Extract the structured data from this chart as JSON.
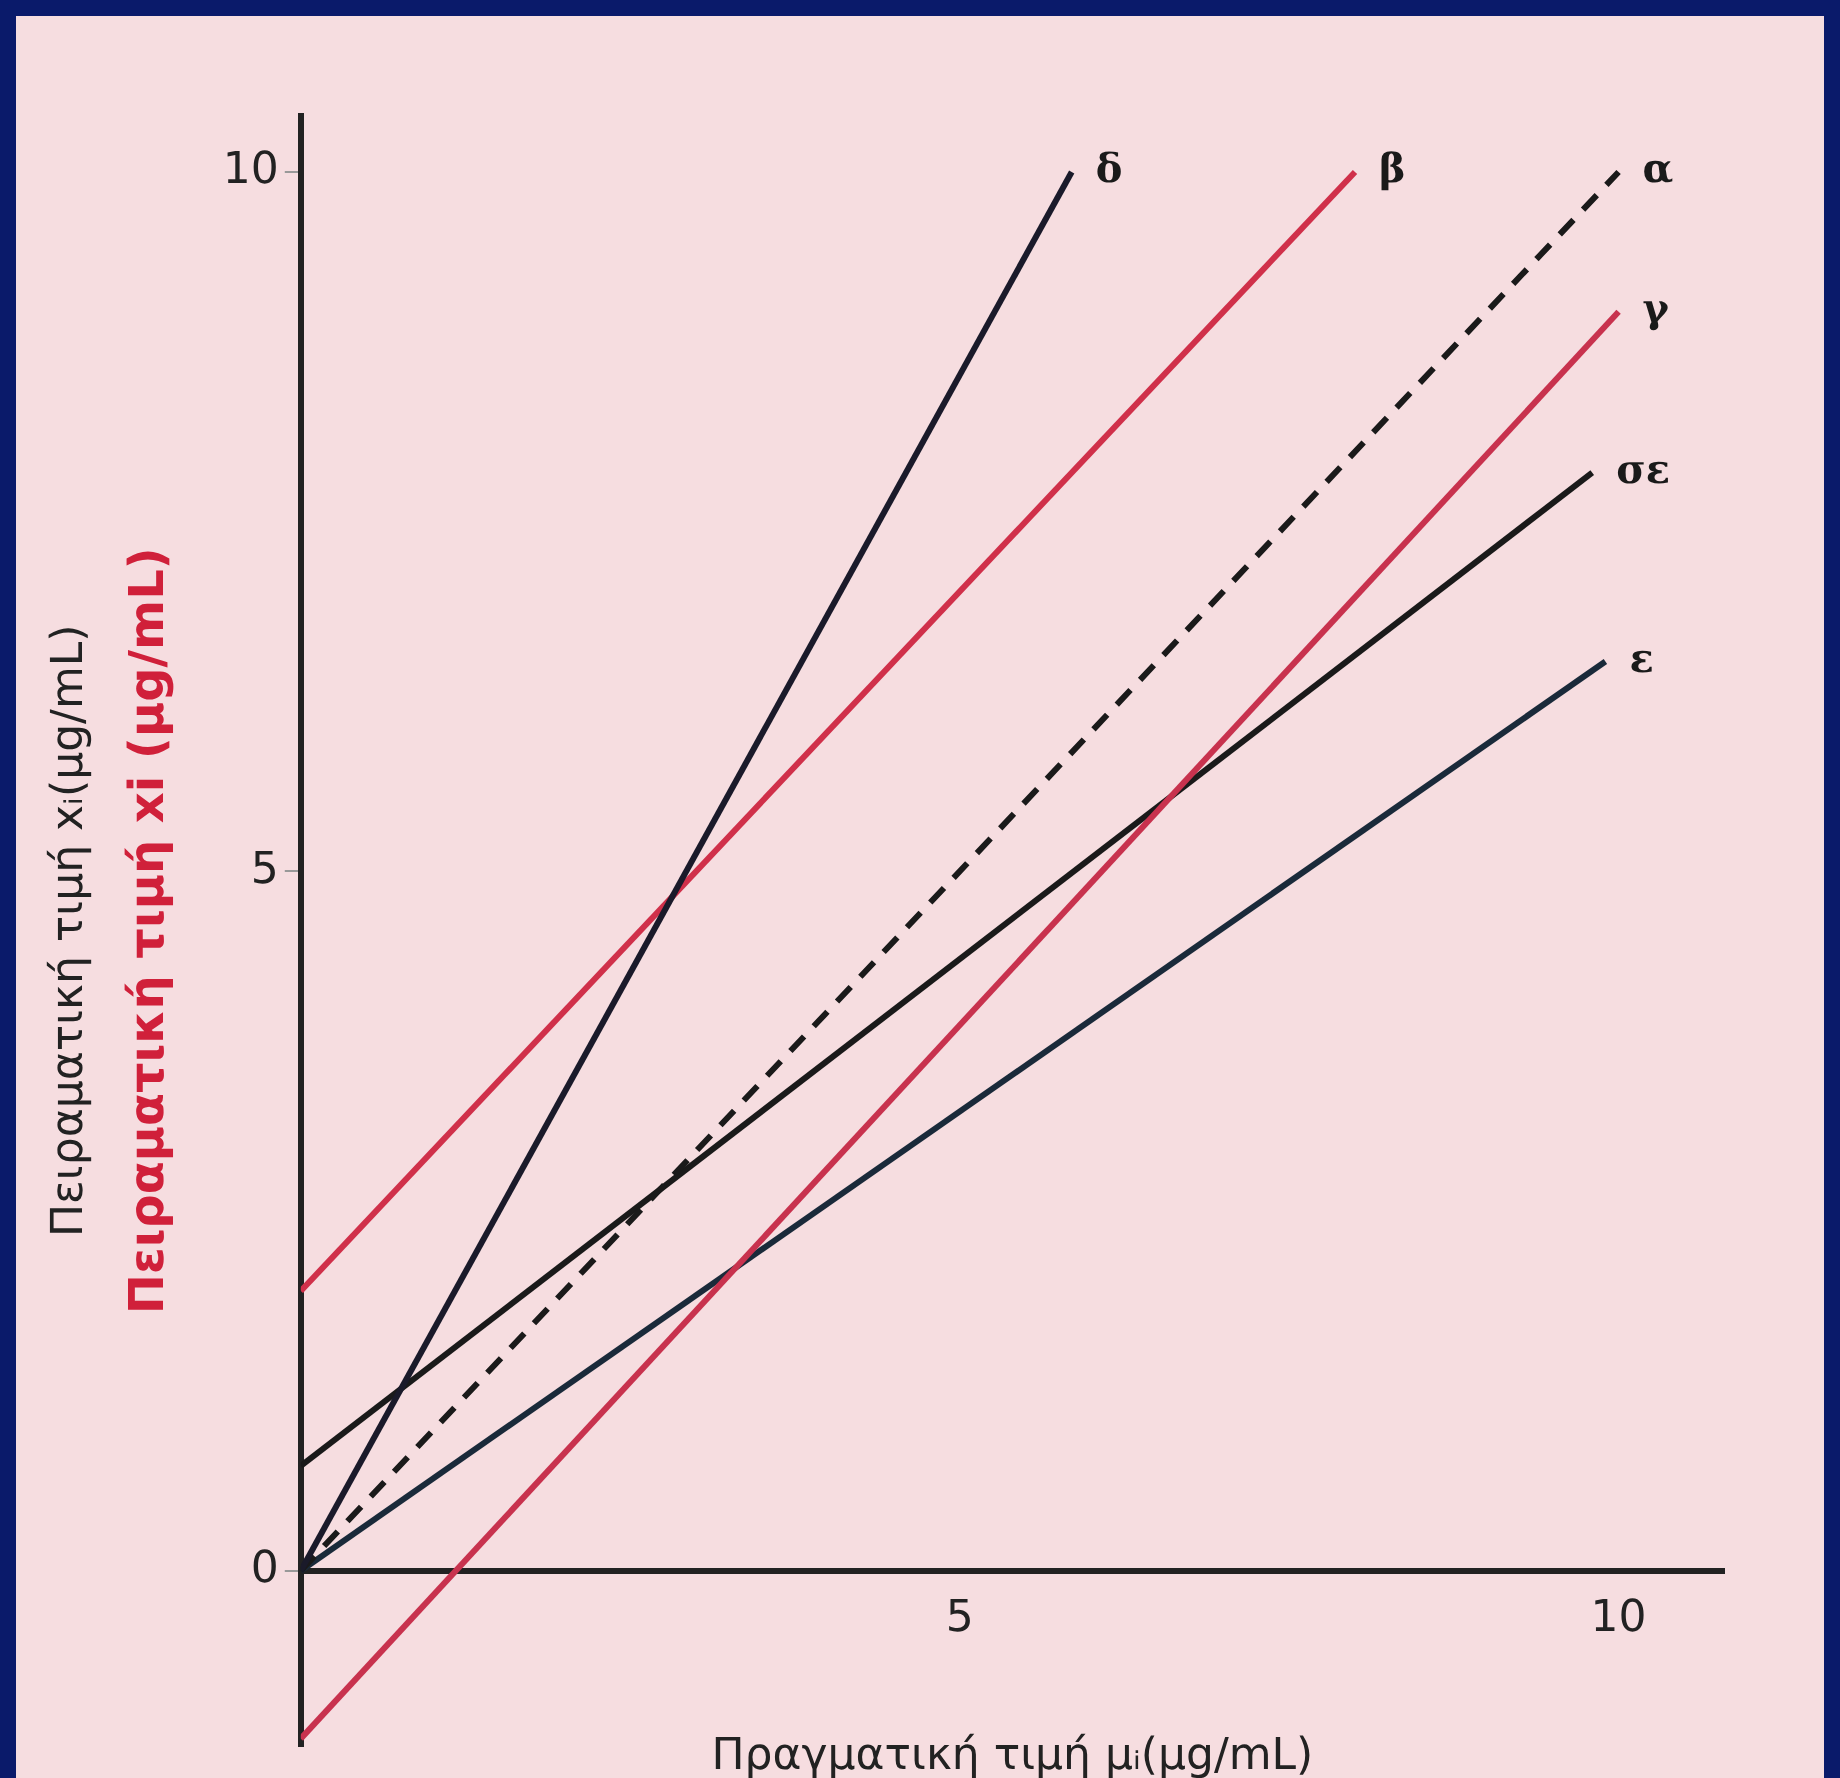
{
  "chart_data": {
    "type": "line",
    "xlabel": "Πραγματική τιμή μᵢ(μg/mL)",
    "ylabel": "Πειραματική τιμή xᵢ(μg/mL)",
    "annotations": [
      "Πειραματική τιμή xi (μg/mL)"
    ],
    "xlim": [
      0,
      10.8
    ],
    "ylim": [
      -1.25,
      10.4
    ],
    "xticks": [
      5,
      10
    ],
    "yticks": [
      0,
      5,
      10
    ],
    "grid": false,
    "legend": false,
    "marker": "none",
    "series": [
      {
        "name": "δ",
        "color": "#1a1a2a",
        "x": [
          0,
          5.85
        ],
        "values": [
          0,
          10
        ]
      },
      {
        "name": "β",
        "color": "#d0304a",
        "x": [
          0,
          8
        ],
        "values": [
          2,
          10
        ]
      },
      {
        "name": "α",
        "color": "#1a1a1a",
        "line_style": "dashed",
        "x": [
          0,
          10
        ],
        "values": [
          0,
          10
        ]
      },
      {
        "name": "γ",
        "color": "#c8324e",
        "x": [
          0,
          10
        ],
        "values": [
          -1.2,
          9
        ]
      },
      {
        "name": "σε",
        "color": "#1a1a1a",
        "x": [
          0,
          9.8
        ],
        "values": [
          0.75,
          7.85
        ]
      },
      {
        "name": "ε",
        "color": "#1a2a3a",
        "x": [
          0,
          9.9
        ],
        "values": [
          0,
          6.5
        ]
      }
    ]
  }
}
